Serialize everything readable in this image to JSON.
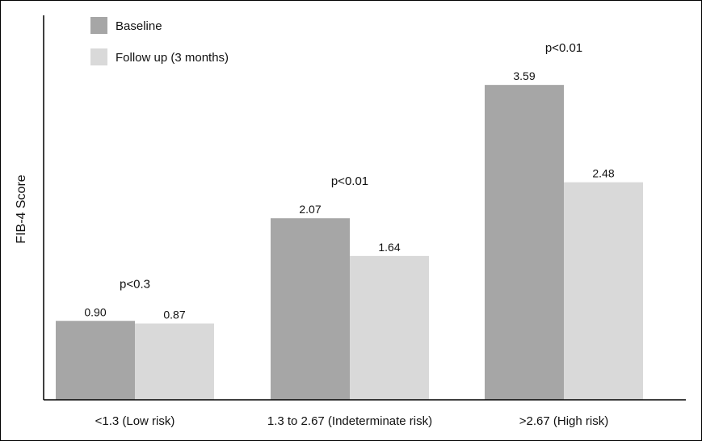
{
  "chart_data": {
    "type": "bar",
    "ylabel": "FIB-4 Score",
    "xlabel": "",
    "categories": [
      "<1.3 (Low risk)",
      "1.3 to 2.67 (Indeterminate risk)",
      ">2.67 (High risk)"
    ],
    "series": [
      {
        "name": "Baseline",
        "values": [
          0.9,
          2.07,
          3.59
        ],
        "labels": [
          "0.90",
          "2.07",
          "3.59"
        ],
        "color": "#a6a6a6"
      },
      {
        "name": "Follow up (3 months)",
        "values": [
          0.87,
          1.64,
          2.48
        ],
        "labels": [
          "0.87",
          "1.64",
          "2.48"
        ],
        "color": "#d9d9d9"
      }
    ],
    "annotations": [
      "p<0.3",
      "p<0.01",
      "p<0.01"
    ],
    "ylim": [
      0,
      4.2
    ],
    "grid": false,
    "legend": "top-left"
  }
}
